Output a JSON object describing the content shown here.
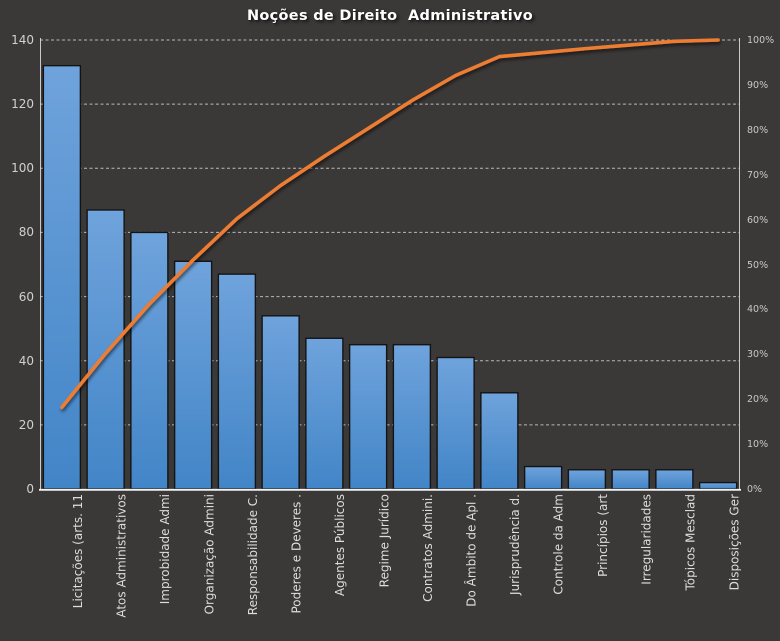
{
  "chart_data": {
    "type": "pareto",
    "title": "Noções de Direito  Administrativo",
    "categories": [
      "Licitações (arts. 11",
      "Atos Administrativos",
      "Improbidade Admi",
      "Organização Admini",
      "Responsabilidade C.",
      "Poderes e Deveres .",
      "Agentes Públicos",
      "Regime Jurídico",
      "Contratos Admini.",
      "Do Âmbito de Apl .",
      "Jurisprudência d.",
      "Controle da Adm",
      "Princípios (art",
      "Irregularidades",
      "Tópicos Mesclad",
      "Disposições Ger"
    ],
    "series": [
      {
        "name": "bars",
        "type": "bar",
        "axis": "left",
        "values": [
          132,
          87,
          80,
          71,
          67,
          54,
          47,
          45,
          45,
          41,
          30,
          7,
          6,
          6,
          6,
          2
        ]
      },
      {
        "name": "cumulative-line",
        "type": "line",
        "axis": "right",
        "values": [
          18.2,
          30.2,
          41.2,
          51,
          60.2,
          67.6,
          74.1,
          80.3,
          86.5,
          92.1,
          96.3,
          97.2,
          98.1,
          98.9,
          99.7,
          100
        ]
      }
    ],
    "left_axis": {
      "min": 0,
      "max": 140,
      "step": 20,
      "labels": [
        "0",
        "20",
        "40",
        "60",
        "80",
        "100",
        "120",
        "140"
      ]
    },
    "right_axis": {
      "min": 0,
      "max": 100,
      "step": 10,
      "labels": [
        "0%",
        "10%",
        "20%",
        "30%",
        "40%",
        "50%",
        "60%",
        "70%",
        "80%",
        "90%",
        "100%"
      ]
    },
    "grid": {
      "show": true,
      "style": "dashed",
      "aligned_to": "left_axis"
    },
    "legend": {
      "show": false
    },
    "colors": {
      "background": "#3B3838",
      "bar_gradient_top": "#6FA3DC",
      "bar_gradient_bottom": "#4285C7",
      "bar_border": "#141414",
      "line": "#ED7D31",
      "gridline": "#CFCFCF",
      "axis_line": "#D9D9D9",
      "baseline": "#F2F2F2",
      "title_text": "#FFFFFF",
      "left_axis_text": "#D2D0D0",
      "right_axis_text": "#C9C7C7",
      "category_text": "#DEDCDC"
    }
  }
}
